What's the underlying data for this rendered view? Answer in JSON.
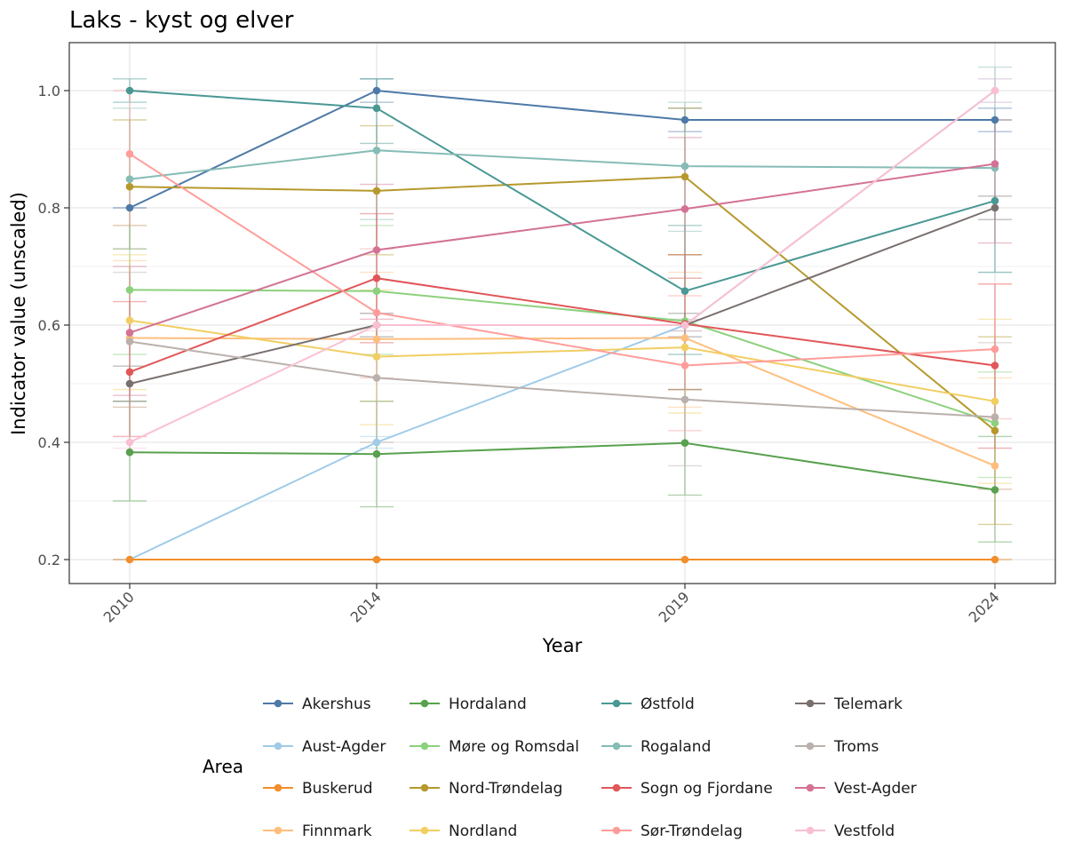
{
  "chart_data": {
    "type": "line",
    "title": "Laks - kyst og elver",
    "xlabel": "Year",
    "ylabel": "Indicator value (unscaled)",
    "x": [
      2010,
      2014,
      2019,
      2024
    ],
    "ylim": [
      0.16,
      1.08
    ],
    "yticks": [
      0.2,
      0.4,
      0.6,
      0.8,
      1.0
    ],
    "ytick_labels": [
      "0.2",
      "0.4",
      "0.6",
      "0.8",
      "1.0"
    ],
    "xtick_labels": [
      "2010",
      "2014",
      "2019",
      "2024"
    ],
    "grid": true,
    "legend": {
      "title": "Area",
      "position": "bottom",
      "columns": 4
    },
    "series": [
      {
        "name": "Akershus",
        "color": "#4e79a7",
        "values": [
          0.8,
          1.0,
          0.95,
          0.95
        ],
        "errors": [
          [
            0.8,
            0.8
          ],
          [
            0.98,
            1.02
          ],
          [
            0.93,
            0.97
          ],
          [
            0.93,
            0.97
          ]
        ]
      },
      {
        "name": "Aust-Agder",
        "color": "#a0cbe8",
        "values": [
          0.2,
          0.4,
          0.6,
          1.0
        ],
        "errors": [
          [
            0.2,
            0.2
          ],
          [
            0.39,
            0.41
          ],
          [
            0.59,
            0.61
          ],
          [
            0.98,
            1.02
          ]
        ]
      },
      {
        "name": "Buskerud",
        "color": "#f28e2b",
        "values": [
          0.2,
          0.2,
          0.2,
          0.2
        ],
        "errors": [
          [
            0.2,
            0.2
          ],
          [
            0.2,
            0.2
          ],
          [
            0.2,
            0.2
          ],
          [
            0.2,
            0.2
          ]
        ]
      },
      {
        "name": "Finnmark",
        "color": "#ffbe7d",
        "values": [
          0.578,
          0.576,
          0.578,
          0.36
        ],
        "errors": [
          [
            0.46,
            0.71
          ],
          [
            0.47,
            0.69
          ],
          [
            0.46,
            0.69
          ],
          [
            0.32,
            0.51
          ]
        ]
      },
      {
        "name": "Hordaland",
        "color": "#59a14f",
        "values": [
          0.383,
          0.38,
          0.399,
          0.319
        ],
        "errors": [
          [
            0.3,
            0.47
          ],
          [
            0.29,
            0.47
          ],
          [
            0.31,
            0.49
          ],
          [
            0.23,
            0.41
          ]
        ]
      },
      {
        "name": "Møre og Romsdal",
        "color": "#8cd17d",
        "values": [
          0.66,
          0.658,
          0.607,
          0.433
        ],
        "errors": [
          [
            0.55,
            0.77
          ],
          [
            0.55,
            0.77
          ],
          [
            0.49,
            0.72
          ],
          [
            0.34,
            0.52
          ]
        ]
      },
      {
        "name": "Nord-Trøndelag",
        "color": "#b6992d",
        "values": [
          0.836,
          0.829,
          0.853,
          0.42
        ],
        "errors": [
          [
            0.73,
            0.95
          ],
          [
            0.72,
            0.94
          ],
          [
            0.72,
            0.97
          ],
          [
            0.26,
            0.58
          ]
        ]
      },
      {
        "name": "Nordland",
        "color": "#f1ce63",
        "values": [
          0.608,
          0.546,
          0.562,
          0.47
        ],
        "errors": [
          [
            0.49,
            0.72
          ],
          [
            0.43,
            0.66
          ],
          [
            0.45,
            0.68
          ],
          [
            0.33,
            0.61
          ]
        ]
      },
      {
        "name": "Østfold",
        "color": "#499894",
        "values": [
          1.0,
          0.97,
          0.658,
          0.812
        ],
        "errors": [
          [
            0.98,
            1.02
          ],
          [
            0.91,
            1.02
          ],
          [
            0.55,
            0.77
          ],
          [
            0.69,
            0.95
          ]
        ]
      },
      {
        "name": "Rogaland",
        "color": "#86bcb6",
        "values": [
          0.849,
          0.898,
          0.871,
          0.868
        ],
        "errors": [
          [
            0.73,
            0.97
          ],
          [
            0.78,
            1.02
          ],
          [
            0.76,
            0.98
          ],
          [
            0.69,
            1.04
          ]
        ]
      },
      {
        "name": "Sogn og Fjordane",
        "color": "#e15759",
        "values": [
          0.52,
          0.68,
          0.602,
          0.531
        ],
        "errors": [
          [
            0.41,
            0.64
          ],
          [
            0.57,
            0.79
          ],
          [
            0.49,
            0.72
          ],
          [
            0.39,
            0.67
          ]
        ]
      },
      {
        "name": "Sør-Trøndelag",
        "color": "#ff9d9a",
        "values": [
          0.892,
          0.621,
          0.531,
          0.559
        ],
        "errors": [
          [
            0.77,
            1.0
          ],
          [
            0.51,
            0.73
          ],
          [
            0.42,
            0.65
          ],
          [
            0.44,
            0.67
          ]
        ]
      },
      {
        "name": "Telemark",
        "color": "#79706e",
        "values": [
          0.5,
          0.6,
          0.6,
          0.8
        ],
        "errors": [
          [
            0.47,
            0.53
          ],
          [
            0.58,
            0.62
          ],
          [
            0.58,
            0.62
          ],
          [
            0.78,
            0.82
          ]
        ]
      },
      {
        "name": "Troms",
        "color": "#bab0ac",
        "values": [
          0.572,
          0.51,
          0.473,
          0.443
        ],
        "errors": [
          [
            0.46,
            0.69
          ],
          [
            0.4,
            0.62
          ],
          [
            0.36,
            0.59
          ],
          [
            0.32,
            0.57
          ]
        ]
      },
      {
        "name": "Vest-Agder",
        "color": "#d37295",
        "values": [
          0.587,
          0.728,
          0.798,
          0.875
        ],
        "errors": [
          [
            0.48,
            0.7
          ],
          [
            0.61,
            0.84
          ],
          [
            0.68,
            0.92
          ],
          [
            0.74,
            0.95
          ]
        ]
      },
      {
        "name": "Vestfold",
        "color": "#fabfd2",
        "values": [
          0.4,
          0.6,
          0.6,
          1.0
        ],
        "errors": [
          [
            0.39,
            0.41
          ],
          [
            0.59,
            0.61
          ],
          [
            0.59,
            0.61
          ],
          [
            0.98,
            1.02
          ]
        ]
      }
    ]
  }
}
